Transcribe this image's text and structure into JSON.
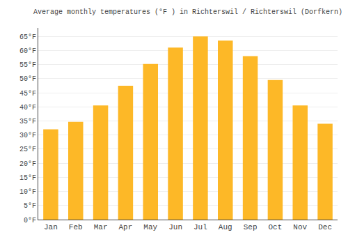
{
  "chart_data": {
    "type": "bar",
    "title": "Average monthly temperatures (°F ) in Richterswil / Richterswil (Dorfkern)",
    "categories": [
      "Jan",
      "Feb",
      "Mar",
      "Apr",
      "May",
      "Jun",
      "Jul",
      "Aug",
      "Sep",
      "Oct",
      "Nov",
      "Dec"
    ],
    "values": [
      32.0,
      34.7,
      40.5,
      47.5,
      55.2,
      61.0,
      65.0,
      63.5,
      58.0,
      49.5,
      40.5,
      34.0
    ],
    "color": "#FDB827",
    "ylim": [
      0,
      68
    ],
    "yticks": [
      {
        "value": 0,
        "label": "0°F"
      },
      {
        "value": 5,
        "label": "5°F"
      },
      {
        "value": 10,
        "label": "10°F"
      },
      {
        "value": 15,
        "label": "15°F"
      },
      {
        "value": 20,
        "label": "20°F"
      },
      {
        "value": 25,
        "label": "25°F"
      },
      {
        "value": 30,
        "label": "30°F"
      },
      {
        "value": 35,
        "label": "35°F"
      },
      {
        "value": 40,
        "label": "40°F"
      },
      {
        "value": 45,
        "label": "45°F"
      },
      {
        "value": 50,
        "label": "50°F"
      },
      {
        "value": 55,
        "label": "55°F"
      },
      {
        "value": 60,
        "label": "60°F"
      },
      {
        "value": 65,
        "label": "65°F"
      }
    ],
    "grid": true
  }
}
